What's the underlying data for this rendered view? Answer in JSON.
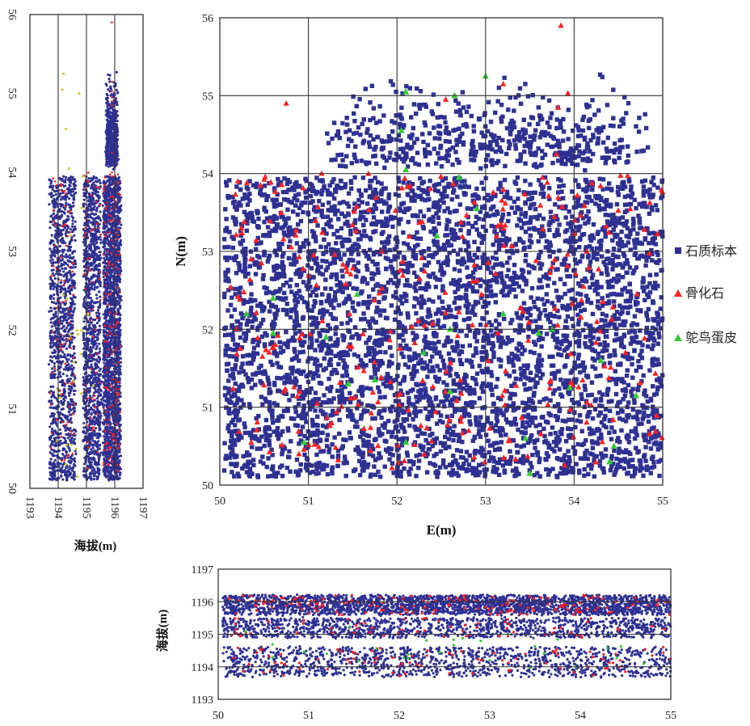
{
  "chart_data": [
    {
      "id": "plan",
      "type": "scatter",
      "xlabel": "E(m)",
      "ylabel": "N(m)",
      "xlim": [
        50,
        55
      ],
      "ylim": [
        50,
        56
      ],
      "xticks": [
        "50",
        "51",
        "52",
        "53",
        "54",
        "55"
      ],
      "yticks": [
        "50",
        "51",
        "52",
        "53",
        "54",
        "55",
        "56"
      ],
      "grid": true,
      "legend_position": "right",
      "series": [
        {
          "name": "石质标本",
          "marker": "square",
          "color": "#2e3192",
          "approx_count": 5200
        },
        {
          "name": "骨化石",
          "marker": "triangle",
          "color": "#ff2020",
          "approx_count": 300
        },
        {
          "name": "鸵鸟蛋皮",
          "marker": "triangle",
          "color": "#33cc33",
          "approx_count": 50
        }
      ],
      "notes": "Dense scatter; points fill E 50-55, N 50-54, with sparser extension to N ~56 around E 52-54."
    },
    {
      "id": "profile-ns",
      "type": "scatter",
      "xlabel": "海拔(m)",
      "ylabel": "",
      "xlim": [
        1193,
        1197
      ],
      "ylim": [
        50,
        56
      ],
      "xticks": [
        "1193",
        "1194",
        "1195",
        "1196",
        "1197"
      ],
      "yticks": [
        "50",
        "51",
        "52",
        "53",
        "54",
        "55",
        "56"
      ],
      "grid": "vertical",
      "series": [
        {
          "name": "石质标本",
          "color": "#2e3192"
        },
        {
          "name": "骨化石",
          "color": "#ff2020"
        },
        {
          "name": "鸵鸟蛋皮",
          "color": "#cccc33"
        }
      ]
    },
    {
      "id": "profile-ew",
      "type": "scatter",
      "xlabel": "",
      "ylabel": "海拔(m)",
      "xlim": [
        50,
        55
      ],
      "ylim": [
        1193,
        1197
      ],
      "xticks": [
        "50",
        "51",
        "52",
        "53",
        "54",
        "55"
      ],
      "yticks": [
        "1193",
        "1194",
        "1195",
        "1196",
        "1197"
      ],
      "grid": "horizontal",
      "series": [
        {
          "name": "石质标本",
          "color": "#2e3192"
        },
        {
          "name": "骨化石",
          "color": "#ff2020"
        },
        {
          "name": "鸵鸟蛋皮",
          "color": "#33cc33"
        }
      ]
    }
  ],
  "colors": {
    "stone": "#2e3192",
    "bone": "#ff2020",
    "eggshell": "#33cc33",
    "eggshell_side": "#cccc33"
  }
}
